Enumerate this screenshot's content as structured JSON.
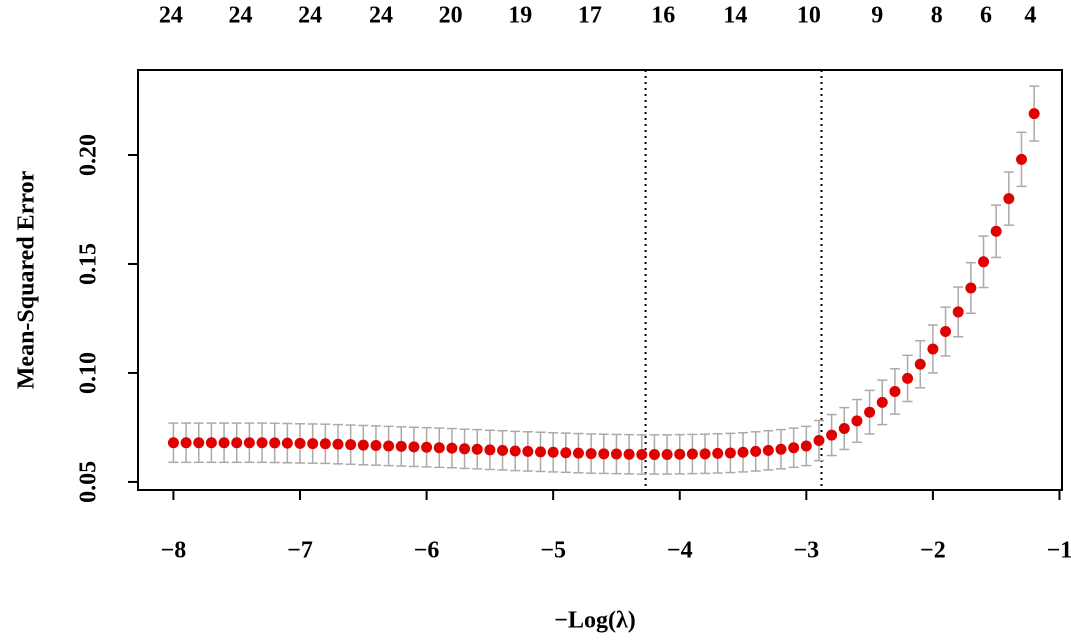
{
  "chart_data": {
    "type": "errorbar-scatter",
    "xlabel": "−Log(λ)",
    "ylabel": "Mean-Squared Error",
    "xlim": [
      -8.28,
      -0.98
    ],
    "ylim": [
      0.0463,
      0.239
    ],
    "xticks": [
      {
        "value": -8,
        "label": "−8"
      },
      {
        "value": -7,
        "label": "−7"
      },
      {
        "value": -6,
        "label": "−6"
      },
      {
        "value": -5,
        "label": "−5"
      },
      {
        "value": -4,
        "label": "−4"
      },
      {
        "value": -3,
        "label": "−3"
      },
      {
        "value": -2,
        "label": "−2"
      },
      {
        "value": -1,
        "label": "−1"
      }
    ],
    "yticks": [
      {
        "value": 0.05,
        "label": "0.05"
      },
      {
        "value": 0.1,
        "label": "0.10"
      },
      {
        "value": 0.15,
        "label": "0.15"
      },
      {
        "value": 0.2,
        "label": "0.20"
      }
    ],
    "top_axis": {
      "x": [
        -8.02,
        -7.47,
        -6.92,
        -6.36,
        -5.81,
        -5.26,
        -4.71,
        -4.13,
        -3.56,
        -2.98,
        -2.44,
        -1.97,
        -1.58,
        -1.23
      ],
      "labels": [
        "24",
        "24",
        "24",
        "24",
        "20",
        "19",
        "17",
        "16",
        "14",
        "10",
        "9",
        "8",
        "6",
        "4"
      ]
    },
    "vlines": [
      -4.27,
      -2.88
    ],
    "color": "#e00000",
    "error_color": "#aaaaaa",
    "x": [
      -8.0,
      -7.9,
      -7.8,
      -7.7,
      -7.6,
      -7.5,
      -7.4,
      -7.3,
      -7.2,
      -7.1,
      -7.0,
      -6.9,
      -6.8,
      -6.7,
      -6.6,
      -6.5,
      -6.4,
      -6.3,
      -6.2,
      -6.1,
      -6.0,
      -5.9,
      -5.8,
      -5.7,
      -5.6,
      -5.5,
      -5.4,
      -5.3,
      -5.2,
      -5.1,
      -5.0,
      -4.9,
      -4.8,
      -4.7,
      -4.6,
      -4.5,
      -4.4,
      -4.3,
      -4.2,
      -4.1,
      -4.0,
      -3.9,
      -3.8,
      -3.7,
      -3.6,
      -3.5,
      -3.4,
      -3.3,
      -3.2,
      -3.1,
      -3.0,
      -2.9,
      -2.8,
      -2.7,
      -2.6,
      -2.5,
      -2.4,
      -2.3,
      -2.2,
      -2.1,
      -2.0,
      -1.9,
      -1.8,
      -1.7,
      -1.6,
      -1.5,
      -1.4,
      -1.3,
      -1.2
    ],
    "values": [
      0.068,
      0.068,
      0.068,
      0.068,
      0.068,
      0.068,
      0.068,
      0.068,
      0.0679,
      0.0678,
      0.0677,
      0.0676,
      0.0675,
      0.0673,
      0.0671,
      0.0669,
      0.0667,
      0.0665,
      0.0663,
      0.0661,
      0.0659,
      0.0657,
      0.0655,
      0.0652,
      0.065,
      0.0647,
      0.0645,
      0.0642,
      0.064,
      0.0638,
      0.0636,
      0.0634,
      0.0632,
      0.063,
      0.0629,
      0.0628,
      0.0627,
      0.0626,
      0.0626,
      0.0626,
      0.0627,
      0.0628,
      0.0629,
      0.0631,
      0.0633,
      0.0636,
      0.064,
      0.0645,
      0.065,
      0.0657,
      0.0665,
      0.069,
      0.0715,
      0.0745,
      0.078,
      0.082,
      0.0865,
      0.0915,
      0.0975,
      0.104,
      0.111,
      0.119,
      0.128,
      0.139,
      0.151,
      0.165,
      0.18,
      0.198,
      0.219
    ],
    "errors": [
      0.009,
      0.009,
      0.009,
      0.009,
      0.009,
      0.009,
      0.009,
      0.009,
      0.009,
      0.009,
      0.009,
      0.009,
      0.009,
      0.009,
      0.009,
      0.009,
      0.009,
      0.009,
      0.009,
      0.009,
      0.009,
      0.009,
      0.009,
      0.009,
      0.009,
      0.009,
      0.009,
      0.009,
      0.009,
      0.009,
      0.009,
      0.009,
      0.009,
      0.009,
      0.009,
      0.009,
      0.009,
      0.009,
      0.009,
      0.009,
      0.009,
      0.009,
      0.009,
      0.009,
      0.009,
      0.009,
      0.009,
      0.009,
      0.009,
      0.009,
      0.009,
      0.0092,
      0.0094,
      0.0096,
      0.0098,
      0.01,
      0.0102,
      0.0104,
      0.0106,
      0.0108,
      0.011,
      0.0112,
      0.0114,
      0.0116,
      0.0118,
      0.012,
      0.0122,
      0.0124,
      0.0126
    ]
  }
}
